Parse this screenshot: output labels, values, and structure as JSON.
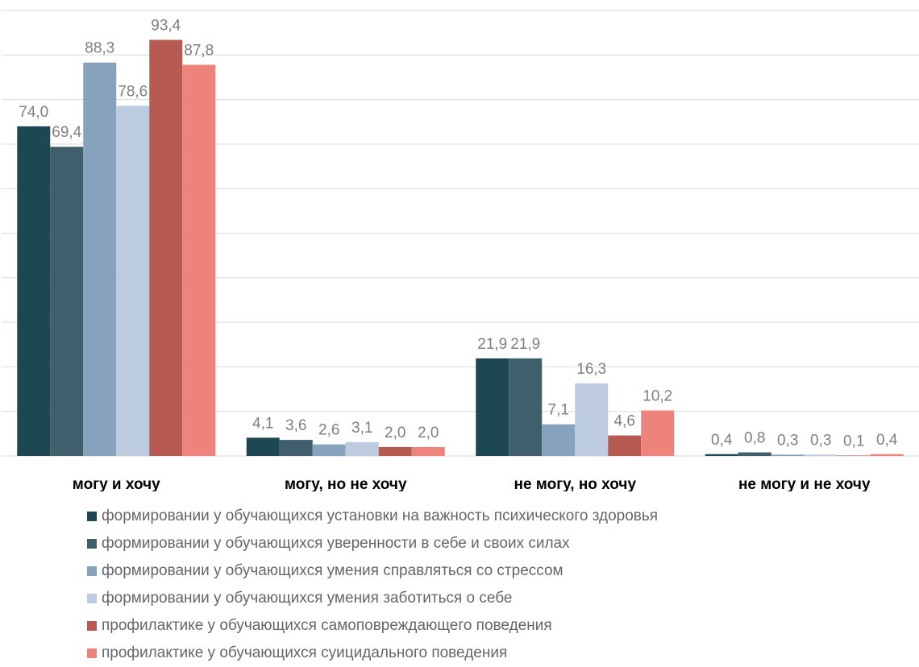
{
  "chart_data": {
    "type": "bar",
    "categories": [
      "могу и хочу",
      "могу, но не хочу",
      "не могу, но хочу",
      "не могу и не хочу"
    ],
    "series": [
      {
        "name": "формировании у обучающихся установки на важность психического здоровья",
        "color": "#1c4753",
        "values": [
          74.0,
          4.1,
          21.9,
          0.4
        ],
        "labels": [
          "74,0",
          "4,1",
          "21,9",
          "0,4"
        ]
      },
      {
        "name": "формировании у обучающихся уверенности в себе и своих силах",
        "color": "#3e5f6b",
        "values": [
          69.4,
          3.6,
          21.9,
          0.8
        ],
        "labels": [
          "69,4",
          "3,6",
          "21,9",
          "0,8"
        ]
      },
      {
        "name": "формировании у обучающихся умения справляться со стрессом",
        "color": "#87a2bd",
        "values": [
          88.3,
          2.6,
          7.1,
          0.3
        ],
        "labels": [
          "88,3",
          "2,6",
          "7,1",
          "0,3"
        ]
      },
      {
        "name": "формировании у обучающихся умения заботиться о себе",
        "color": "#bccbdf",
        "values": [
          78.6,
          3.1,
          16.3,
          0.3
        ],
        "labels": [
          "78,6",
          "3,1",
          "16,3",
          "0,3"
        ]
      },
      {
        "name": "профилактике у обучающихся самоповреждающего поведения",
        "color": "#b65a52",
        "values": [
          93.4,
          2.0,
          4.6,
          0.1
        ],
        "labels": [
          "93,4",
          "2,0",
          "4,6",
          "0,1"
        ]
      },
      {
        "name": "профилактике у обучающихся суицидального поведения",
        "color": "#ee837c",
        "values": [
          87.8,
          2.0,
          10.2,
          0.4
        ],
        "labels": [
          "87,8",
          "2,0",
          "10,2",
          "0,4"
        ]
      }
    ],
    "ylim": [
      0,
      100
    ],
    "grid": true,
    "legend": "bottom",
    "colors": {
      "grid": "#d9d9d9",
      "data_label": "#7f7f7f",
      "category_label": "#000000",
      "legend_text": "#666666"
    }
  }
}
